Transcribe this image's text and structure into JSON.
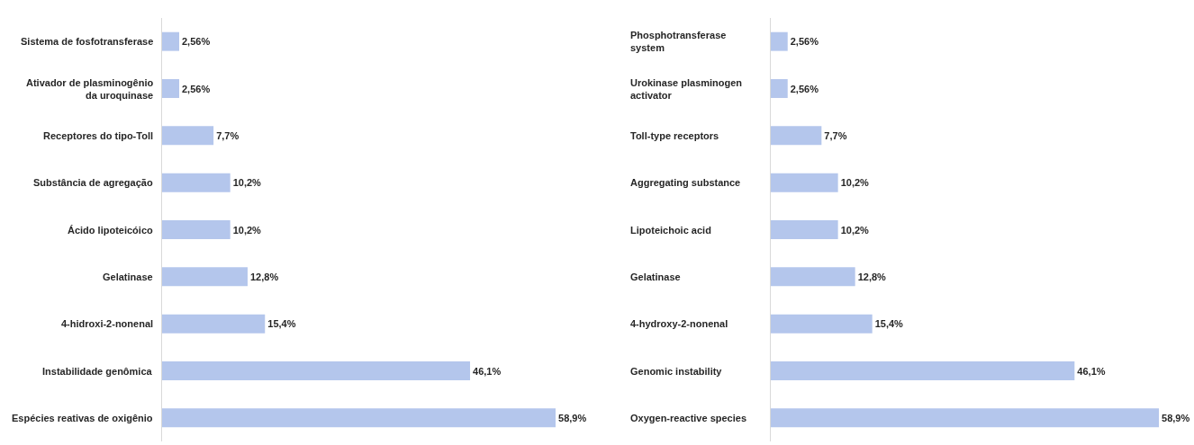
{
  "chart_data": [
    {
      "type": "bar",
      "orientation": "horizontal",
      "categories": [
        "Sistema de fosfotransferase",
        "Ativador de plasminogênio\nda uroquinase",
        "Receptores do tipo-Toll",
        "Substância de agregação",
        "Ácido lipoteicóico",
        "Gelatinase",
        "4-hidroxi-2-nonenal",
        "Instabilidade genômica",
        "Espécies reativas de oxigênio"
      ],
      "values": [
        2.56,
        2.56,
        7.7,
        10.2,
        10.2,
        12.8,
        15.4,
        46.1,
        58.9
      ],
      "value_labels": [
        "2,56%",
        "2,56%",
        "7,7%",
        "10,2%",
        "10,2%",
        "12,8%",
        "15,4%",
        "46,1%",
        "58,9%"
      ],
      "color": "#b4c6ec"
    },
    {
      "type": "bar",
      "orientation": "horizontal",
      "categories": [
        "Phosphotransferase\nsystem",
        "Urokinase plasminogen\nactivator",
        "Toll-type receptors",
        "Aggregating substance",
        "Lipoteichoic acid",
        "Gelatinase",
        "4-hydroxy-2-nonenal",
        "Genomic instability",
        "Oxygen-reactive species"
      ],
      "values": [
        2.56,
        2.56,
        7.7,
        10.2,
        10.2,
        12.8,
        15.4,
        46.1,
        58.9
      ],
      "value_labels": [
        "2,56%",
        "2,56%",
        "7,7%",
        "10,2%",
        "10,2%",
        "12,8%",
        "15,4%",
        "46,1%",
        "58,9%"
      ],
      "color": "#b4c6ec"
    }
  ]
}
